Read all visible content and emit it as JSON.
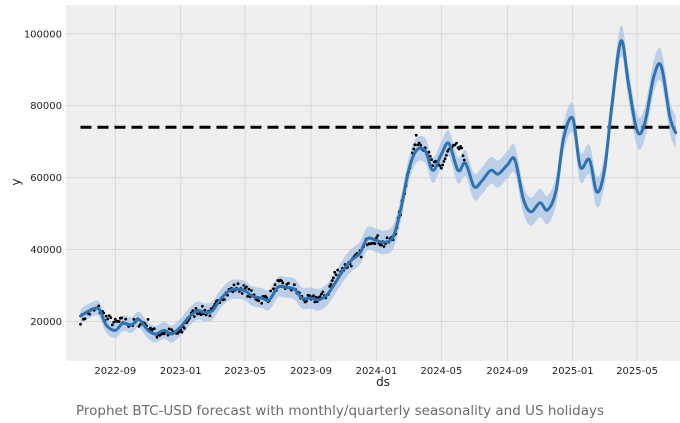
{
  "caption": "Prophet BTC-USD forecast with monthly/quarterly seasonality and US holidays",
  "chart_data": {
    "type": "line",
    "xlabel": "ds",
    "ylabel": "y",
    "xlim": [
      "2022-06-01",
      "2025-07-20"
    ],
    "ylim": [
      9000,
      108000
    ],
    "grid": true,
    "x_ticks": [
      "2022-09",
      "2023-01",
      "2023-05",
      "2023-09",
      "2024-01",
      "2024-05",
      "2024-09",
      "2025-01",
      "2025-05"
    ],
    "y_ticks": [
      20000,
      40000,
      60000,
      80000,
      100000
    ],
    "cap_line": {
      "y": 74000,
      "x_start": "2022-06-28",
      "x_end": "2025-07-12",
      "style": "dashed",
      "color": "#000000"
    },
    "colors": {
      "forecast": "#2f72b0",
      "band": "#a9c6e6",
      "observed": "#000000",
      "plot_background": "#efefef"
    },
    "series": [
      {
        "role": "forecast",
        "x": [
          "2022-06-28",
          "2022-07-15",
          "2022-08-01",
          "2022-08-15",
          "2022-09-01",
          "2022-09-15",
          "2022-10-01",
          "2022-10-15",
          "2022-11-01",
          "2022-11-15",
          "2022-12-01",
          "2022-12-15",
          "2023-01-01",
          "2023-01-15",
          "2023-02-01",
          "2023-02-15",
          "2023-03-01",
          "2023-03-15",
          "2023-04-01",
          "2023-04-15",
          "2023-05-01",
          "2023-05-15",
          "2023-06-01",
          "2023-06-15",
          "2023-07-01",
          "2023-07-15",
          "2023-08-01",
          "2023-08-15",
          "2023-09-01",
          "2023-09-15",
          "2023-10-01",
          "2023-10-15",
          "2023-11-01",
          "2023-11-15",
          "2023-12-01",
          "2023-12-15",
          "2024-01-01",
          "2024-01-15",
          "2024-02-01",
          "2024-02-15",
          "2024-03-01",
          "2024-03-15",
          "2024-04-01",
          "2024-04-15",
          "2024-05-01",
          "2024-05-15",
          "2024-06-01",
          "2024-06-15",
          "2024-07-01",
          "2024-07-15",
          "2024-08-01",
          "2024-08-15",
          "2024-09-01",
          "2024-09-15",
          "2024-10-01",
          "2024-10-15",
          "2024-11-01",
          "2024-11-15",
          "2024-12-01",
          "2024-12-15",
          "2025-01-01",
          "2025-01-15",
          "2025-02-01",
          "2025-02-15",
          "2025-03-01",
          "2025-03-15",
          "2025-04-01",
          "2025-04-15",
          "2025-05-01",
          "2025-05-15",
          "2025-06-01",
          "2025-06-15",
          "2025-07-01",
          "2025-07-12"
        ],
        "y": [
          21500,
          23000,
          23500,
          19000,
          17500,
          19500,
          19000,
          20500,
          17500,
          16500,
          17500,
          16500,
          18500,
          21000,
          23000,
          22500,
          23000,
          26000,
          28500,
          29000,
          28500,
          27000,
          26500,
          26000,
          29500,
          29500,
          29000,
          26500,
          26500,
          26000,
          27500,
          30500,
          34500,
          37000,
          39000,
          43000,
          42500,
          42000,
          43500,
          51000,
          62000,
          67500,
          67500,
          62000,
          66500,
          69500,
          62000,
          64000,
          57500,
          59000,
          62000,
          61000,
          63500,
          65000,
          54000,
          50500,
          53000,
          51000,
          56500,
          71000,
          76500,
          63000,
          65000,
          56000,
          62000,
          80000,
          98000,
          86000,
          73000,
          75000,
          88000,
          91000,
          77000,
          72500
        ]
      },
      {
        "role": "observed",
        "x": [
          "2022-06-28",
          "2022-07-15",
          "2022-08-01",
          "2022-08-15",
          "2022-09-01",
          "2022-09-15",
          "2022-10-01",
          "2022-10-15",
          "2022-11-01",
          "2022-11-15",
          "2022-12-01",
          "2022-12-15",
          "2023-01-01",
          "2023-01-15",
          "2023-02-01",
          "2023-02-15",
          "2023-03-01",
          "2023-03-15",
          "2023-04-01",
          "2023-04-15",
          "2023-05-01",
          "2023-05-15",
          "2023-06-01",
          "2023-06-15",
          "2023-07-01",
          "2023-07-15",
          "2023-08-01",
          "2023-08-15",
          "2023-09-01",
          "2023-09-15",
          "2023-10-01",
          "2023-10-15",
          "2023-11-01",
          "2023-11-15",
          "2023-12-01",
          "2023-12-15",
          "2024-01-01",
          "2024-01-15",
          "2024-02-01",
          "2024-02-15",
          "2024-03-01",
          "2024-03-15",
          "2024-04-01",
          "2024-04-15",
          "2024-05-01",
          "2024-05-15",
          "2024-06-01",
          "2024-06-15"
        ],
        "y": [
          20500,
          22500,
          23500,
          21000,
          19500,
          20000,
          19300,
          19800,
          19500,
          16400,
          17000,
          16800,
          16600,
          20800,
          23200,
          22800,
          22400,
          26500,
          28300,
          29600,
          28800,
          27100,
          26200,
          26800,
          30400,
          29800,
          29200,
          26400,
          25800,
          26600,
          27500,
          33000,
          35000,
          36500,
          38500,
          42500,
          43000,
          41500,
          43000,
          50500,
          62500,
          70500,
          68500,
          63500,
          63000,
          67500,
          68500,
          65500
        ]
      }
    ]
  }
}
